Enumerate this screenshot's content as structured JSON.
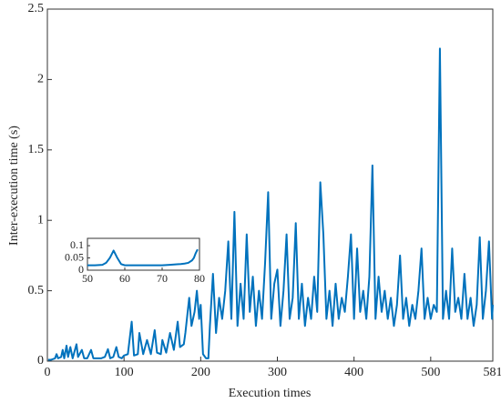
{
  "chart_data": [
    {
      "type": "line",
      "xlabel": "Execution times",
      "ylabel": "Inter-execution time (s)",
      "xlim": [
        0,
        581
      ],
      "ylim": [
        0,
        2.5
      ],
      "xticks": [
        0,
        100,
        200,
        300,
        400,
        500,
        581
      ],
      "yticks": [
        0,
        0.5,
        1,
        1.5,
        2,
        2.5
      ],
      "series": [
        {
          "color": "#0072bd",
          "x": [
            1,
            5,
            10,
            12,
            14,
            18,
            20,
            22,
            25,
            27,
            30,
            33,
            38,
            40,
            45,
            48,
            52,
            57,
            60,
            65,
            70,
            75,
            79,
            82,
            86,
            90,
            93,
            97,
            100,
            105,
            110,
            113,
            118,
            120,
            125,
            130,
            135,
            140,
            143,
            148,
            150,
            155,
            160,
            165,
            170,
            173,
            178,
            180,
            185,
            188,
            192,
            195,
            198,
            200,
            203,
            207,
            210,
            212,
            216,
            220,
            224,
            228,
            232,
            236,
            240,
            244,
            248,
            252,
            256,
            260,
            264,
            268,
            272,
            276,
            280,
            284,
            288,
            292,
            296,
            300,
            304,
            308,
            312,
            316,
            320,
            324,
            328,
            332,
            336,
            340,
            344,
            348,
            352,
            356,
            360,
            364,
            368,
            372,
            376,
            380,
            384,
            388,
            392,
            396,
            400,
            404,
            408,
            412,
            416,
            420,
            424,
            428,
            432,
            436,
            440,
            444,
            448,
            452,
            456,
            460,
            464,
            468,
            472,
            476,
            480,
            484,
            488,
            492,
            496,
            500,
            504,
            508,
            512,
            516,
            520,
            524,
            528,
            532,
            536,
            540,
            544,
            548,
            552,
            556,
            560,
            564,
            568,
            572,
            576,
            580,
            581
          ],
          "values": [
            0.01,
            0.01,
            0.02,
            0.05,
            0.02,
            0.03,
            0.08,
            0.02,
            0.11,
            0.03,
            0.1,
            0.02,
            0.12,
            0.03,
            0.08,
            0.02,
            0.02,
            0.08,
            0.02,
            0.02,
            0.02,
            0.03,
            0.085,
            0.02,
            0.03,
            0.1,
            0.03,
            0.02,
            0.04,
            0.05,
            0.28,
            0.04,
            0.05,
            0.2,
            0.05,
            0.15,
            0.05,
            0.22,
            0.06,
            0.05,
            0.15,
            0.06,
            0.2,
            0.08,
            0.28,
            0.1,
            0.12,
            0.2,
            0.45,
            0.25,
            0.35,
            0.5,
            0.3,
            0.4,
            0.05,
            0.02,
            0.02,
            0.25,
            0.62,
            0.2,
            0.45,
            0.3,
            0.5,
            0.85,
            0.3,
            1.06,
            0.25,
            0.55,
            0.3,
            0.9,
            0.35,
            0.6,
            0.25,
            0.5,
            0.3,
            0.7,
            1.2,
            0.3,
            0.55,
            0.65,
            0.25,
            0.5,
            0.9,
            0.3,
            0.45,
            0.98,
            0.3,
            0.55,
            0.25,
            0.45,
            0.3,
            0.6,
            0.35,
            1.27,
            0.9,
            0.3,
            0.5,
            0.25,
            0.55,
            0.3,
            0.45,
            0.35,
            0.6,
            0.9,
            0.3,
            0.8,
            0.35,
            0.5,
            0.3,
            0.6,
            1.39,
            0.3,
            0.6,
            0.35,
            0.5,
            0.3,
            0.45,
            0.25,
            0.4,
            0.75,
            0.3,
            0.45,
            0.25,
            0.4,
            0.3,
            0.5,
            0.8,
            0.3,
            0.45,
            0.3,
            0.4,
            0.35,
            2.22,
            0.3,
            0.5,
            0.3,
            0.8,
            0.35,
            0.45,
            0.3,
            0.62,
            0.3,
            0.45,
            0.25,
            0.4,
            0.88,
            0.3,
            0.5,
            0.85,
            0.3,
            0.4
          ]
        }
      ]
    },
    {
      "type": "line",
      "xlim": [
        50,
        80
      ],
      "ylim": [
        0,
        0.13
      ],
      "xticks": [
        50,
        60,
        70,
        80
      ],
      "yticks": [
        0,
        0.05,
        0.1
      ],
      "series": [
        {
          "color": "#0072bd",
          "x": [
            50,
            52,
            54,
            55,
            56,
            57,
            58,
            59,
            60,
            62,
            65,
            68,
            70,
            72,
            74,
            75,
            76,
            77,
            78,
            78.5,
            79,
            79.5
          ],
          "values": [
            0.02,
            0.02,
            0.022,
            0.03,
            0.05,
            0.08,
            0.05,
            0.025,
            0.02,
            0.02,
            0.02,
            0.02,
            0.02,
            0.022,
            0.024,
            0.025,
            0.027,
            0.03,
            0.04,
            0.05,
            0.07,
            0.085
          ]
        }
      ]
    }
  ]
}
